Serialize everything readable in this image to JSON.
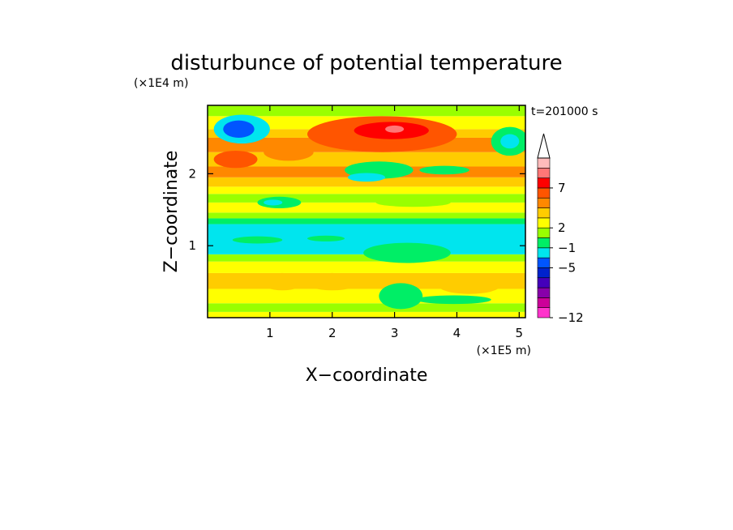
{
  "chart_data": {
    "type": "heatmap",
    "title": "disturbunce of potential temperature",
    "time_label": "t=201000 s",
    "xlabel": "X−coordinate",
    "ylabel": "Z−coordinate",
    "x_scale_label": "(×1E5 m)",
    "y_scale_label": "(×1E4 m)",
    "xlim": [
      0,
      5.1
    ],
    "ylim": [
      0,
      2.95
    ],
    "xticks": [
      {
        "value": 1,
        "label": "1"
      },
      {
        "value": 2,
        "label": "2"
      },
      {
        "value": 3,
        "label": "3"
      },
      {
        "value": 4,
        "label": "4"
      },
      {
        "value": 5,
        "label": "5"
      }
    ],
    "yticks": [
      {
        "value": 1,
        "label": "1"
      },
      {
        "value": 2,
        "label": "2"
      }
    ],
    "colorbar": {
      "colors": [
        "#ff33cc",
        "#cc0099",
        "#8800aa",
        "#4400bb",
        "#0022cc",
        "#0055ff",
        "#00e5ee",
        "#00ee66",
        "#99ff00",
        "#ffff00",
        "#ffcc00",
        "#ff8800",
        "#ff5500",
        "#ff0000",
        "#ff7777",
        "#ffbbbb"
      ],
      "tick_labels": [
        {
          "after_band": 0,
          "label": "−12"
        },
        {
          "after_band": 5,
          "label": "−5"
        },
        {
          "after_band": 7,
          "label": "−1"
        },
        {
          "after_band": 9,
          "label": "2"
        },
        {
          "after_band": 13,
          "label": "7"
        }
      ],
      "extend_max": true
    },
    "field_bands": [
      {
        "z_bottom": 0.0,
        "z_top": 0.08,
        "level": 2
      },
      {
        "z_bottom": 0.08,
        "z_top": 0.2,
        "level": 1
      },
      {
        "z_bottom": 0.2,
        "z_top": 0.4,
        "level": 2
      },
      {
        "z_bottom": 0.4,
        "z_top": 0.62,
        "level": 3
      },
      {
        "z_bottom": 0.62,
        "z_top": 0.78,
        "level": 2
      },
      {
        "z_bottom": 0.78,
        "z_top": 0.88,
        "level": 1
      },
      {
        "z_bottom": 0.88,
        "z_top": 1.3,
        "level": -1
      },
      {
        "z_bottom": 1.3,
        "z_top": 1.38,
        "level": 0
      },
      {
        "z_bottom": 1.38,
        "z_top": 1.46,
        "level": 1
      },
      {
        "z_bottom": 1.46,
        "z_top": 1.6,
        "level": 2
      },
      {
        "z_bottom": 1.6,
        "z_top": 1.72,
        "level": 1
      },
      {
        "z_bottom": 1.72,
        "z_top": 1.82,
        "level": 2
      },
      {
        "z_bottom": 1.82,
        "z_top": 1.95,
        "level": 3
      },
      {
        "z_bottom": 1.95,
        "z_top": 2.1,
        "level": 4
      },
      {
        "z_bottom": 2.1,
        "z_top": 2.3,
        "level": 3
      },
      {
        "z_bottom": 2.3,
        "z_top": 2.5,
        "level": 4
      },
      {
        "z_bottom": 2.5,
        "z_top": 2.62,
        "level": 3
      },
      {
        "z_bottom": 2.62,
        "z_top": 2.8,
        "level": 2
      },
      {
        "z_bottom": 2.8,
        "z_top": 2.95,
        "level": 1
      }
    ],
    "field_blobs": [
      {
        "x": 0.55,
        "z": 2.62,
        "rx": 0.45,
        "rz": 0.2,
        "level": -1
      },
      {
        "x": 0.5,
        "z": 2.62,
        "rx": 0.25,
        "rz": 0.12,
        "level": -2
      },
      {
        "x": 0.45,
        "z": 2.2,
        "rx": 0.35,
        "rz": 0.12,
        "level": 5
      },
      {
        "x": 1.3,
        "z": 2.3,
        "rx": 0.4,
        "rz": 0.12,
        "level": 4
      },
      {
        "x": 2.8,
        "z": 2.55,
        "rx": 1.2,
        "rz": 0.25,
        "level": 5
      },
      {
        "x": 2.95,
        "z": 2.6,
        "rx": 0.6,
        "rz": 0.12,
        "level": 6
      },
      {
        "x": 3.0,
        "z": 2.62,
        "rx": 0.15,
        "rz": 0.05,
        "level": 7
      },
      {
        "x": 2.75,
        "z": 2.05,
        "rx": 0.55,
        "rz": 0.12,
        "level": 0
      },
      {
        "x": 2.55,
        "z": 1.95,
        "rx": 0.3,
        "rz": 0.06,
        "level": -1
      },
      {
        "x": 4.85,
        "z": 2.45,
        "rx": 0.3,
        "rz": 0.2,
        "level": 0
      },
      {
        "x": 4.85,
        "z": 2.45,
        "rx": 0.15,
        "rz": 0.1,
        "level": -1
      },
      {
        "x": 3.8,
        "z": 2.05,
        "rx": 0.4,
        "rz": 0.06,
        "level": 0
      },
      {
        "x": 1.15,
        "z": 1.6,
        "rx": 0.35,
        "rz": 0.08,
        "level": 0
      },
      {
        "x": 1.05,
        "z": 1.6,
        "rx": 0.15,
        "rz": 0.04,
        "level": -1
      },
      {
        "x": 3.3,
        "z": 1.6,
        "rx": 0.6,
        "rz": 0.06,
        "level": 1
      },
      {
        "x": 3.2,
        "z": 0.9,
        "rx": 0.7,
        "rz": 0.14,
        "level": 0
      },
      {
        "x": 1.2,
        "z": 0.5,
        "rx": 0.35,
        "rz": 0.12,
        "level": 3
      },
      {
        "x": 2.0,
        "z": 0.5,
        "rx": 0.45,
        "rz": 0.12,
        "level": 3
      },
      {
        "x": 4.2,
        "z": 0.45,
        "rx": 0.5,
        "rz": 0.12,
        "level": 3
      },
      {
        "x": 3.1,
        "z": 0.3,
        "rx": 0.35,
        "rz": 0.18,
        "level": 0
      },
      {
        "x": 3.95,
        "z": 0.25,
        "rx": 0.6,
        "rz": 0.06,
        "level": 0
      },
      {
        "x": 0.8,
        "z": 1.08,
        "rx": 0.4,
        "rz": 0.05,
        "level": 0
      },
      {
        "x": 1.9,
        "z": 1.1,
        "rx": 0.3,
        "rz": 0.04,
        "level": 0
      }
    ]
  }
}
